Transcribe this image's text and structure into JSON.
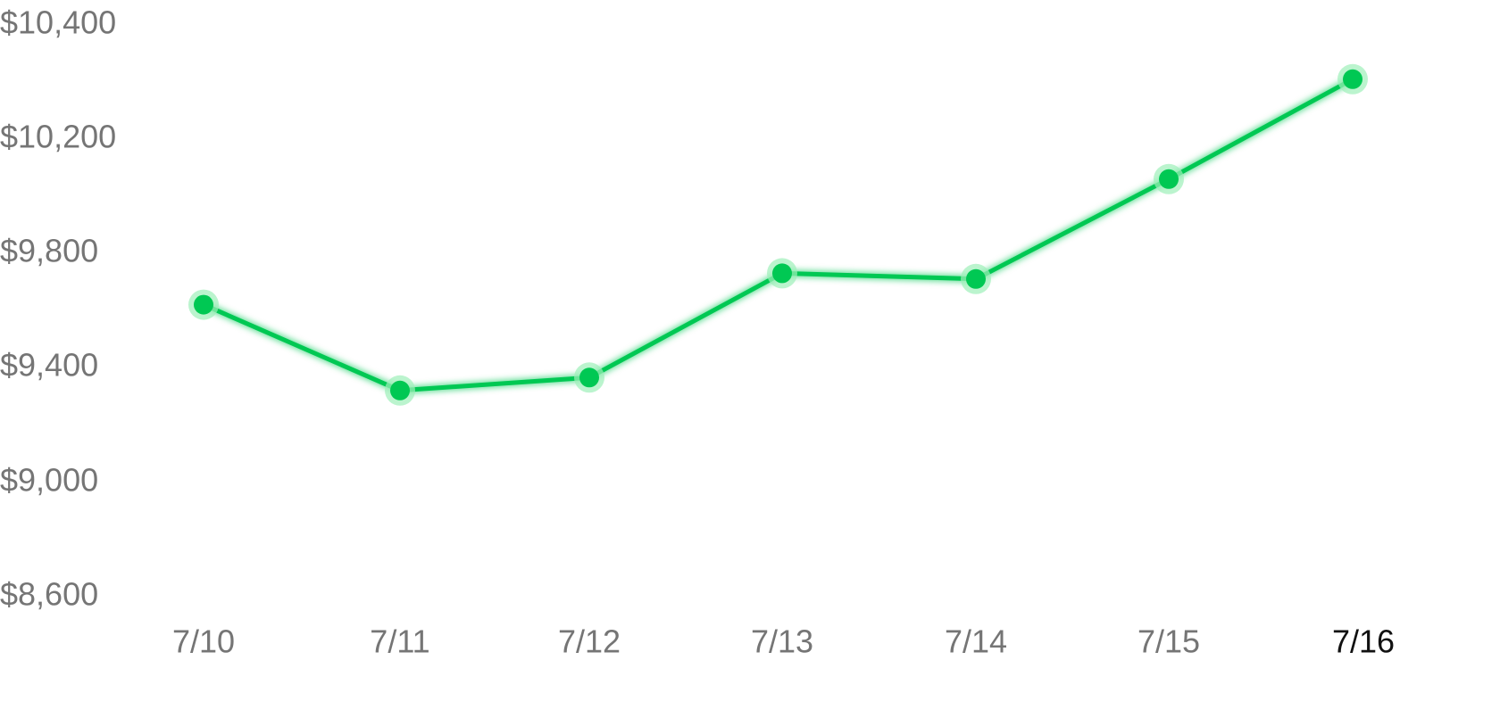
{
  "chart_data": {
    "type": "line",
    "title": "",
    "xlabel": "",
    "ylabel": "",
    "categories": [
      "7/10",
      "7/11",
      "7/12",
      "7/13",
      "7/14",
      "7/15",
      "7/16"
    ],
    "series": [
      {
        "values": [
          9620,
          9320,
          9365,
          9730,
          9710,
          10060,
          10305
        ],
        "color": "#00c853"
      }
    ],
    "y_ticks": [
      10400,
      10200,
      9800,
      9400,
      9000,
      8600
    ],
    "y_tick_labels": [
      "$10,400",
      "$10,200",
      "$9,800",
      "$9,400",
      "$9,000",
      "$8,600"
    ],
    "ylim": [
      8600,
      10400
    ],
    "highlighted_category": "7/16",
    "grid": false,
    "legend": "none",
    "colors": {
      "line": "#00c853",
      "marker_halo": "#9ef0b9",
      "tick_label": "#757575",
      "highlighted_tick_label": "#111111"
    }
  }
}
